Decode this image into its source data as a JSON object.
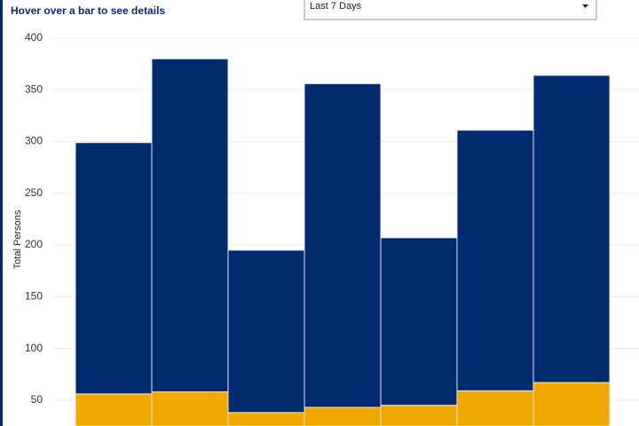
{
  "hint": "Hover over a bar to see details",
  "dropdown": "Last 7 Days",
  "chart_data": {
    "type": "stacked_bar",
    "ylabel": "Total Persons",
    "categories": [
      null,
      null,
      null,
      null,
      null,
      null,
      null
    ],
    "series": [
      {
        "color": "#f0a800",
        "values": [
          56,
          58,
          38,
          43,
          45,
          59,
          67
        ]
      },
      {
        "color": "#002b6e",
        "values": [
          243,
          322,
          157,
          313,
          162,
          252,
          297
        ]
      }
    ],
    "ylim": [
      25,
      400
    ],
    "yticks": [
      50,
      100,
      150,
      200,
      250,
      300,
      350,
      400
    ],
    "grid": true
  }
}
